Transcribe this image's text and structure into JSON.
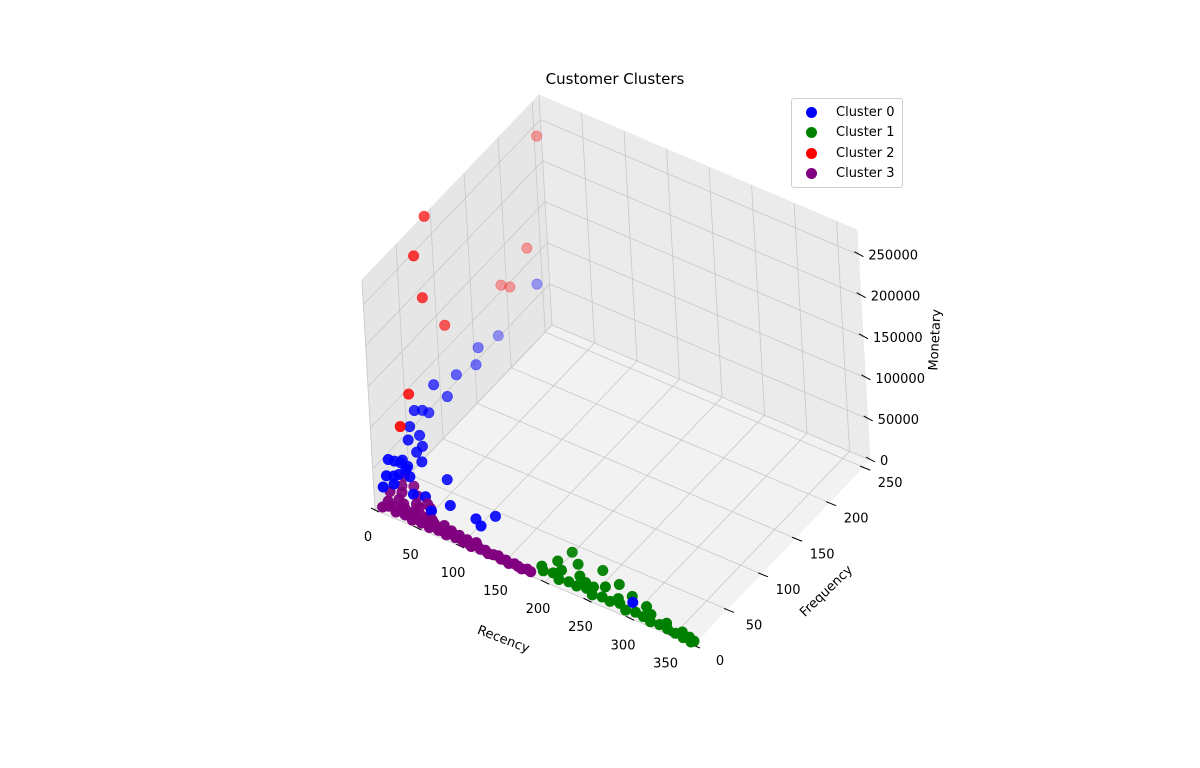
{
  "chart_data": {
    "type": "scatter",
    "title": "Customer Clusters",
    "xlabel": "Recency",
    "ylabel": "Frequency",
    "zlabel": "Monetary",
    "x_ticks": [
      "0",
      "50",
      "100",
      "150",
      "200",
      "250",
      "300",
      "350"
    ],
    "y_ticks": [
      "0",
      "50",
      "100",
      "150",
      "200",
      "250"
    ],
    "z_ticks": [
      "0",
      "50000",
      "100000",
      "150000",
      "200000",
      "250000"
    ],
    "xlim": [
      0,
      374
    ],
    "ylim": [
      0,
      260
    ],
    "zlim": [
      0,
      280000
    ],
    "grid": true,
    "legend_position": "top-right",
    "series": [
      {
        "name": "Cluster 0",
        "color": "#0000ff",
        "points": [
          [
            2,
            20,
            45000
          ],
          [
            5,
            25,
            40000
          ],
          [
            8,
            30,
            35000
          ],
          [
            3,
            15,
            30000
          ],
          [
            10,
            40,
            55000
          ],
          [
            12,
            35,
            28000
          ],
          [
            6,
            22,
            25000
          ],
          [
            4,
            50,
            60000
          ],
          [
            15,
            45,
            38000
          ],
          [
            7,
            28,
            22000
          ],
          [
            2,
            60,
            70000
          ],
          [
            9,
            18,
            20000
          ],
          [
            11,
            55,
            48000
          ],
          [
            1,
            12,
            18000
          ],
          [
            14,
            30,
            30000
          ],
          [
            20,
            28,
            25000
          ],
          [
            25,
            40,
            35000
          ],
          [
            18,
            50,
            42000
          ],
          [
            3,
            70,
            62000
          ],
          [
            6,
            35,
            33000
          ],
          [
            30,
            20,
            15000
          ],
          [
            40,
            25,
            12000
          ],
          [
            55,
            15,
            10000
          ],
          [
            65,
            30,
            8000
          ],
          [
            50,
            45,
            20000
          ],
          [
            1,
            90,
            75000
          ],
          [
            3,
            120,
            62000
          ],
          [
            5,
            150,
            70000
          ],
          [
            8,
            100,
            55000
          ],
          [
            2,
            80,
            50000
          ],
          [
            10,
            140,
            60000
          ],
          [
            4,
            180,
            58000
          ],
          [
            2,
            240,
            68000
          ],
          [
            95,
            30,
            5000
          ],
          [
            105,
            25,
            5000
          ],
          [
            110,
            40,
            6000
          ],
          [
            300,
            5,
            15000
          ]
        ]
      },
      {
        "name": "Cluster 1",
        "color": "#008000",
        "points": [
          [
            190,
            10,
            800
          ],
          [
            200,
            12,
            900
          ],
          [
            210,
            8,
            700
          ],
          [
            220,
            10,
            600
          ],
          [
            230,
            9,
            800
          ],
          [
            240,
            11,
            700
          ],
          [
            250,
            7,
            500
          ],
          [
            260,
            9,
            600
          ],
          [
            270,
            8,
            500
          ],
          [
            280,
            10,
            700
          ],
          [
            290,
            6,
            400
          ],
          [
            300,
            8,
            500
          ],
          [
            310,
            7,
            400
          ],
          [
            320,
            5,
            300
          ],
          [
            330,
            6,
            350
          ],
          [
            340,
            5,
            300
          ],
          [
            350,
            4,
            250
          ],
          [
            360,
            3,
            200
          ],
          [
            370,
            2,
            150
          ],
          [
            372,
            4,
            300
          ],
          [
            365,
            6,
            400
          ],
          [
            355,
            8,
            500
          ],
          [
            195,
            25,
            2000
          ],
          [
            215,
            30,
            2500
          ],
          [
            240,
            35,
            1500
          ],
          [
            200,
            40,
            1800
          ],
          [
            225,
            20,
            1200
          ],
          [
            245,
            15,
            900
          ],
          [
            265,
            28,
            1500
          ],
          [
            285,
            22,
            1000
          ],
          [
            305,
            18,
            800
          ],
          [
            205,
            18,
            1200
          ],
          [
            235,
            16,
            1000
          ],
          [
            275,
            14,
            900
          ],
          [
            315,
            12,
            800
          ],
          [
            335,
            10,
            700
          ],
          [
            185,
            14,
            900
          ],
          [
            255,
            20,
            1100
          ]
        ]
      },
      {
        "name": "Cluster 2",
        "color": "#ff0000",
        "points": [
          [
            1,
            90,
            280000
          ],
          [
            3,
            70,
            250000
          ],
          [
            2,
            80,
            190000
          ],
          [
            1,
            110,
            130000
          ],
          [
            5,
            50,
            100000
          ],
          [
            10,
            30,
            80000
          ],
          [
            2,
            190,
            110000
          ],
          [
            4,
            200,
            100000
          ],
          [
            1,
            230,
            120000
          ],
          [
            3,
            250,
            240000
          ]
        ]
      },
      {
        "name": "Cluster 3",
        "color": "#800080",
        "points": [
          [
            5,
            5,
            1500
          ],
          [
            10,
            8,
            2000
          ],
          [
            15,
            10,
            1800
          ],
          [
            20,
            6,
            1200
          ],
          [
            25,
            9,
            1500
          ],
          [
            30,
            7,
            1000
          ],
          [
            35,
            10,
            1400
          ],
          [
            40,
            5,
            900
          ],
          [
            45,
            8,
            1100
          ],
          [
            50,
            6,
            800
          ],
          [
            55,
            9,
            1200
          ],
          [
            60,
            5,
            700
          ],
          [
            65,
            8,
            1000
          ],
          [
            70,
            6,
            800
          ],
          [
            75,
            7,
            900
          ],
          [
            80,
            5,
            600
          ],
          [
            85,
            8,
            900
          ],
          [
            90,
            6,
            700
          ],
          [
            95,
            7,
            800
          ],
          [
            100,
            5,
            600
          ],
          [
            105,
            6,
            700
          ],
          [
            110,
            4,
            500
          ],
          [
            115,
            7,
            800
          ],
          [
            120,
            5,
            600
          ],
          [
            125,
            6,
            700
          ],
          [
            130,
            4,
            500
          ],
          [
            135,
            5,
            600
          ],
          [
            140,
            6,
            700
          ],
          [
            145,
            4,
            500
          ],
          [
            150,
            5,
            600
          ],
          [
            155,
            3,
            400
          ],
          [
            160,
            5,
            600
          ],
          [
            165,
            4,
            500
          ],
          [
            170,
            3,
            400
          ],
          [
            175,
            5,
            600
          ],
          [
            180,
            4,
            500
          ],
          [
            2,
            20,
            6000
          ],
          [
            8,
            30,
            7000
          ],
          [
            12,
            25,
            5000
          ],
          [
            18,
            35,
            6500
          ],
          [
            22,
            15,
            4000
          ],
          [
            28,
            28,
            5000
          ],
          [
            33,
            20,
            4500
          ],
          [
            38,
            18,
            4000
          ],
          [
            42,
            25,
            4200
          ],
          [
            48,
            22,
            3800
          ],
          [
            53,
            15,
            3000
          ],
          [
            58,
            12,
            2800
          ],
          [
            3,
            40,
            7500
          ],
          [
            6,
            12,
            3000
          ],
          [
            14,
            18,
            3500
          ],
          [
            26,
            12,
            2500
          ],
          [
            36,
            14,
            2800
          ],
          [
            46,
            12,
            2200
          ],
          [
            62,
            10,
            2000
          ],
          [
            72,
            12,
            2300
          ],
          [
            82,
            10,
            2000
          ],
          [
            92,
            9,
            1800
          ],
          [
            102,
            8,
            1600
          ],
          [
            112,
            9,
            1700
          ]
        ]
      }
    ]
  }
}
